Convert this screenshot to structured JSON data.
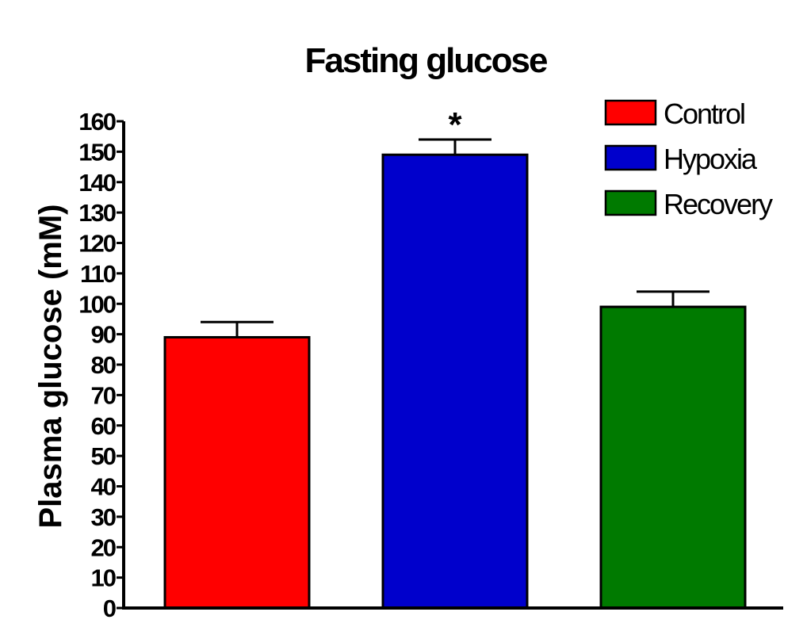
{
  "chart_data": {
    "type": "bar",
    "title": "Fasting glucose",
    "xlabel": "",
    "ylabel": "Plasma glucose (mM)",
    "ylim": [
      0,
      160
    ],
    "yticks": [
      0,
      10,
      20,
      30,
      40,
      50,
      60,
      70,
      80,
      90,
      100,
      110,
      120,
      130,
      140,
      150,
      160
    ],
    "grid": false,
    "legend_position": "top-right",
    "series": [
      {
        "name": "Control",
        "value": 89,
        "error": 5,
        "color": "#ff0000",
        "annotation": ""
      },
      {
        "name": "Hypoxia",
        "value": 149,
        "error": 5,
        "color": "#0000cc",
        "annotation": "*"
      },
      {
        "name": "Recovery",
        "value": 99,
        "error": 5,
        "color": "#007a00",
        "annotation": ""
      }
    ]
  }
}
